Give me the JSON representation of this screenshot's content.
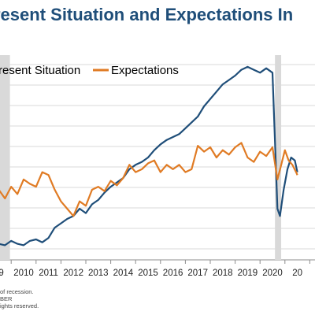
{
  "chart_data": {
    "type": "line",
    "title": "resent Situation and Expectations In",
    "x_ticks": [
      "09",
      "2010",
      "2011",
      "2012",
      "2013",
      "2014",
      "2015",
      "2016",
      "2017",
      "2018",
      "2019",
      "2020",
      "20"
    ],
    "recession_bands": [
      {
        "start": 2008.6,
        "end": 2009.45
      },
      {
        "start": 2020.1,
        "end": 2020.35
      }
    ],
    "grid": true,
    "legend_position": "top",
    "series": [
      {
        "name": "resent Situation",
        "color": "#1f4e79",
        "points": [
          [
            2009.0,
            1
          ],
          [
            2009.25,
            0
          ],
          [
            2009.5,
            3
          ],
          [
            2009.75,
            1
          ],
          [
            2010.0,
            0
          ],
          [
            2010.25,
            3
          ],
          [
            2010.5,
            4
          ],
          [
            2010.75,
            2
          ],
          [
            2011.0,
            5
          ],
          [
            2011.25,
            12
          ],
          [
            2011.5,
            15
          ],
          [
            2011.75,
            18
          ],
          [
            2012.0,
            20
          ],
          [
            2012.25,
            25
          ],
          [
            2012.5,
            22
          ],
          [
            2012.75,
            28
          ],
          [
            2013.0,
            31
          ],
          [
            2013.25,
            36
          ],
          [
            2013.5,
            40
          ],
          [
            2013.75,
            43
          ],
          [
            2014.0,
            46
          ],
          [
            2014.25,
            52
          ],
          [
            2014.5,
            55
          ],
          [
            2014.75,
            57
          ],
          [
            2015.0,
            60
          ],
          [
            2015.25,
            65
          ],
          [
            2015.5,
            69
          ],
          [
            2015.75,
            72
          ],
          [
            2016.0,
            74
          ],
          [
            2016.25,
            76
          ],
          [
            2016.5,
            80
          ],
          [
            2016.75,
            84
          ],
          [
            2017.0,
            88
          ],
          [
            2017.25,
            95
          ],
          [
            2017.5,
            100
          ],
          [
            2017.75,
            105
          ],
          [
            2018.0,
            110
          ],
          [
            2018.25,
            113
          ],
          [
            2018.5,
            116
          ],
          [
            2018.75,
            120
          ],
          [
            2019.0,
            122
          ],
          [
            2019.25,
            120
          ],
          [
            2019.5,
            118
          ],
          [
            2019.75,
            121
          ],
          [
            2020.0,
            118
          ],
          [
            2020.2,
            25
          ],
          [
            2020.3,
            20
          ],
          [
            2020.45,
            38
          ],
          [
            2020.6,
            52
          ],
          [
            2020.75,
            60
          ],
          [
            2020.9,
            58
          ],
          [
            2021.0,
            50
          ]
        ]
      },
      {
        "name": "Expectations",
        "color": "#e07b24",
        "points": [
          [
            2009.0,
            38
          ],
          [
            2009.25,
            32
          ],
          [
            2009.5,
            40
          ],
          [
            2009.75,
            35
          ],
          [
            2010.0,
            45
          ],
          [
            2010.25,
            42
          ],
          [
            2010.5,
            40
          ],
          [
            2010.75,
            50
          ],
          [
            2011.0,
            48
          ],
          [
            2011.25,
            38
          ],
          [
            2011.5,
            30
          ],
          [
            2011.75,
            25
          ],
          [
            2012.0,
            20
          ],
          [
            2012.25,
            30
          ],
          [
            2012.5,
            27
          ],
          [
            2012.75,
            38
          ],
          [
            2013.0,
            40
          ],
          [
            2013.25,
            37
          ],
          [
            2013.5,
            44
          ],
          [
            2013.75,
            41
          ],
          [
            2014.0,
            46
          ],
          [
            2014.25,
            55
          ],
          [
            2014.5,
            50
          ],
          [
            2014.75,
            52
          ],
          [
            2015.0,
            56
          ],
          [
            2015.25,
            58
          ],
          [
            2015.5,
            50
          ],
          [
            2015.75,
            55
          ],
          [
            2016.0,
            52
          ],
          [
            2016.25,
            55
          ],
          [
            2016.5,
            50
          ],
          [
            2016.75,
            52
          ],
          [
            2017.0,
            68
          ],
          [
            2017.25,
            64
          ],
          [
            2017.5,
            67
          ],
          [
            2017.75,
            60
          ],
          [
            2018.0,
            65
          ],
          [
            2018.25,
            62
          ],
          [
            2018.5,
            67
          ],
          [
            2018.75,
            70
          ],
          [
            2019.0,
            60
          ],
          [
            2019.25,
            57
          ],
          [
            2019.5,
            64
          ],
          [
            2019.75,
            61
          ],
          [
            2020.0,
            67
          ],
          [
            2020.2,
            45
          ],
          [
            2020.35,
            55
          ],
          [
            2020.5,
            65
          ],
          [
            2020.65,
            58
          ],
          [
            2020.8,
            55
          ],
          [
            2020.95,
            50
          ],
          [
            2021.0,
            48
          ]
        ]
      }
    ]
  },
  "footnote": {
    "lines": [
      "of recession.",
      "BER",
      "ights reserved."
    ]
  }
}
